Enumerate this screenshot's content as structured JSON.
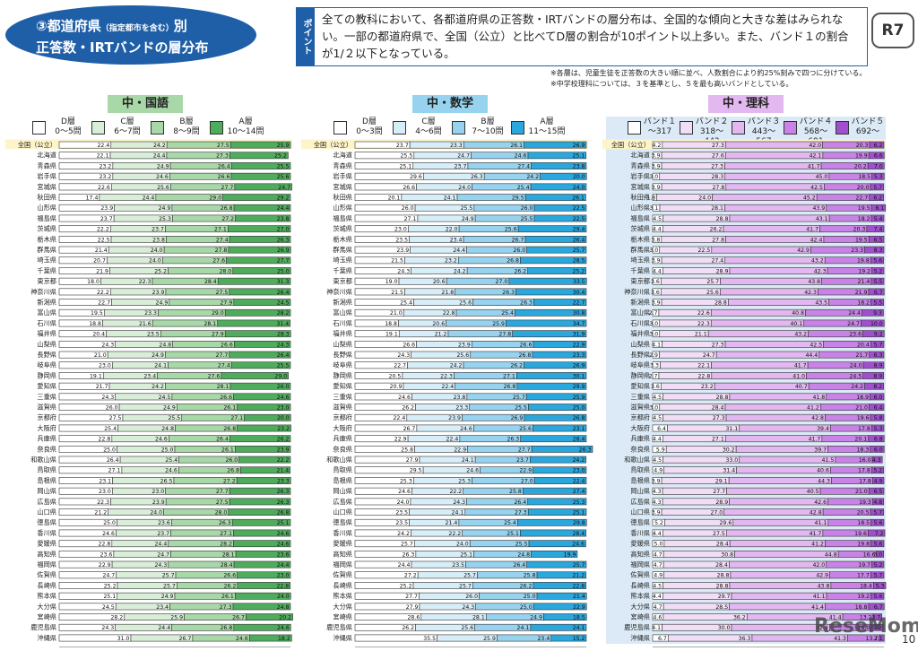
{
  "header": {
    "title_line1": "③都道府県",
    "title_note": "（指定都市を含む）",
    "title_suffix": "別",
    "title_line2": "正答数・IRTバンドの層分布",
    "point_label": "ポイント",
    "point_text": "全ての教科において、各都道府県の正答数・IRTバンドの層分布は、全国的な傾向と大きな差はみられない。一部の都道府県で、全国（公立）と比べてD層の割合が10ポイント以上多い。また、バンド１の割合が1/２以下となっている。",
    "badge": "R7",
    "note1": "※各層は、児童生徒を正答数の大きい順に並べ、人数割合により約25%刻みで四つに分けている。",
    "note2": "※中学校理科については、３を基準とし、５を最も高いバンドとしている。"
  },
  "footer": {
    "watermark": "ReseMom",
    "page": "10"
  },
  "chart_data": [
    {
      "type": "bar",
      "title": "中・国語",
      "legend": [
        {
          "name": "D層",
          "range": "0～5問",
          "color": "#ffffff"
        },
        {
          "name": "C層",
          "range": "6～7問",
          "color": "#d9eed9"
        },
        {
          "name": "B層",
          "range": "8～9問",
          "color": "#a8d8a8"
        },
        {
          "name": "A層",
          "range": "10～14問",
          "color": "#4fac5c"
        }
      ],
      "xticks": [
        "0%",
        "10%",
        "20%",
        "30%",
        "40%",
        "50%",
        "60%",
        "70%",
        "80%",
        "90%",
        "100%"
      ],
      "categories": [
        "全国（公立）",
        "北海道",
        "青森県",
        "岩手県",
        "宮城県",
        "秋田県",
        "山形県",
        "福島県",
        "茨城県",
        "栃木県",
        "群馬県",
        "埼玉県",
        "千葉県",
        "東京都",
        "神奈川県",
        "新潟県",
        "富山県",
        "石川県",
        "福井県",
        "山梨県",
        "長野県",
        "岐阜県",
        "静岡県",
        "愛知県",
        "三重県",
        "滋賀県",
        "京都府",
        "大阪府",
        "兵庫県",
        "奈良県",
        "和歌山県",
        "鳥取県",
        "島根県",
        "岡山県",
        "広島県",
        "山口県",
        "徳島県",
        "香川県",
        "愛媛県",
        "高知県",
        "福岡県",
        "佐賀県",
        "長崎県",
        "熊本県",
        "大分県",
        "宮崎県",
        "鹿児島県",
        "沖縄県"
      ],
      "series": [
        {
          "name": "D層",
          "values": [
            22.4,
            22.1,
            23.2,
            23.2,
            22.6,
            17.4,
            23.9,
            23.7,
            22.2,
            22.5,
            21.4,
            20.7,
            21.9,
            18.0,
            22.2,
            22.7,
            19.5,
            18.8,
            20.4,
            24.3,
            21.0,
            23.0,
            19.1,
            21.7,
            24.3,
            26.0,
            27.5,
            25.4,
            22.8,
            25.0,
            26.4,
            27.1,
            23.1,
            23.0,
            22.3,
            21.2,
            25.0,
            24.6,
            22.8,
            23.6,
            22.9,
            24.7,
            25.2,
            25.1,
            24.5,
            28.2,
            24.3,
            31.0
          ]
        },
        {
          "name": "C層",
          "values": [
            24.2,
            24.4,
            24.9,
            24.6,
            25.6,
            24.4,
            24.9,
            25.3,
            23.7,
            23.8,
            24.0,
            24.0,
            25.2,
            22.3,
            23.9,
            24.9,
            23.3,
            21.6,
            23.5,
            24.8,
            24.9,
            24.1,
            23.4,
            24.2,
            24.5,
            24.9,
            25.5,
            24.8,
            24.6,
            25.0,
            25.4,
            24.6,
            26.5,
            23.0,
            23.9,
            24.0,
            23.6,
            23.7,
            24.4,
            24.7,
            24.3,
            25.7,
            25.7,
            24.9,
            23.4,
            25.9,
            24.4,
            26.7
          ]
        },
        {
          "name": "B層",
          "values": [
            27.5,
            27.3,
            26.4,
            26.6,
            27.7,
            29.0,
            26.8,
            27.2,
            27.1,
            27.4,
            27.8,
            27.6,
            28.0,
            28.4,
            27.5,
            27.9,
            29.0,
            28.1,
            27.9,
            26.6,
            27.7,
            27.4,
            27.6,
            28.1,
            26.6,
            26.1,
            27.1,
            26.8,
            26.4,
            26.1,
            26.0,
            26.8,
            27.2,
            27.7,
            27.5,
            28.0,
            26.3,
            27.1,
            28.2,
            28.1,
            28.4,
            26.6,
            26.2,
            26.1,
            27.3,
            26.7,
            26.8,
            24.6
          ]
        },
        {
          "name": "A層",
          "values": [
            25.9,
            25.2,
            25.5,
            25.6,
            24.7,
            29.2,
            24.4,
            23.8,
            27.0,
            26.3,
            26.9,
            27.7,
            25.0,
            31.3,
            26.4,
            24.5,
            28.2,
            31.4,
            28.3,
            24.3,
            26.4,
            25.5,
            29.0,
            26.0,
            24.6,
            23.0,
            20.0,
            23.2,
            26.2,
            23.9,
            22.2,
            21.4,
            23.3,
            26.3,
            26.3,
            26.8,
            25.1,
            24.6,
            24.6,
            23.6,
            24.4,
            23.0,
            22.8,
            24.0,
            24.8,
            20.2,
            24.6,
            18.2
          ]
        }
      ]
    },
    {
      "type": "bar",
      "title": "中・数学",
      "legend": [
        {
          "name": "D層",
          "range": "0～3問",
          "color": "#ffffff"
        },
        {
          "name": "C層",
          "range": "4～6問",
          "color": "#d7eef9"
        },
        {
          "name": "B層",
          "range": "7～10問",
          "color": "#97d3ef"
        },
        {
          "name": "A層",
          "range": "11～15問",
          "color": "#2aa7dc"
        }
      ],
      "xticks": [
        "0%",
        "10%",
        "20%",
        "30%",
        "40%",
        "50%",
        "60%",
        "70%",
        "80%",
        "90%",
        "100%"
      ],
      "categories": [
        "全国（公立）",
        "北海道",
        "青森県",
        "岩手県",
        "宮城県",
        "秋田県",
        "山形県",
        "福島県",
        "茨城県",
        "栃木県",
        "群馬県",
        "埼玉県",
        "千葉県",
        "東京都",
        "神奈川県",
        "新潟県",
        "富山県",
        "石川県",
        "福井県",
        "山梨県",
        "長野県",
        "岐阜県",
        "静岡県",
        "愛知県",
        "三重県",
        "滋賀県",
        "京都府",
        "大阪府",
        "兵庫県",
        "奈良県",
        "和歌山県",
        "鳥取県",
        "島根県",
        "岡山県",
        "広島県",
        "山口県",
        "徳島県",
        "香川県",
        "愛媛県",
        "高知県",
        "福岡県",
        "佐賀県",
        "長崎県",
        "熊本県",
        "大分県",
        "宮崎県",
        "鹿児島県",
        "沖縄県"
      ],
      "series": [
        {
          "name": "D層",
          "values": [
            23.7,
            25.5,
            25.1,
            29.6,
            26.6,
            20.1,
            26.0,
            27.1,
            23.0,
            23.5,
            23.9,
            21.5,
            24.3,
            19.0,
            21.5,
            25.4,
            21.0,
            18.8,
            19.1,
            26.6,
            24.3,
            22.7,
            20.5,
            20.9,
            24.6,
            26.2,
            22.4,
            26.7,
            22.9,
            25.8,
            27.9,
            29.5,
            25.3,
            24.6,
            24.0,
            23.5,
            23.5,
            24.2,
            25.7,
            26.3,
            24.4,
            27.2,
            25.2,
            27.7,
            27.9,
            28.6,
            26.2,
            35.5
          ]
        },
        {
          "name": "C層",
          "values": [
            23.3,
            24.7,
            23.7,
            26.3,
            24.0,
            24.1,
            25.5,
            24.9,
            22.0,
            23.4,
            24.4,
            23.2,
            24.2,
            20.6,
            21.8,
            25.6,
            22.8,
            20.6,
            21.2,
            23.9,
            25.6,
            24.2,
            22.3,
            22.4,
            23.8,
            23.3,
            23.9,
            24.6,
            22.4,
            22.9,
            24.1,
            24.6,
            25.3,
            22.2,
            24.3,
            24.1,
            21.4,
            22.2,
            24.0,
            25.1,
            23.5,
            25.7,
            25.7,
            26.0,
            24.3,
            28.1,
            25.6,
            25.9
          ]
        },
        {
          "name": "B層",
          "values": [
            26.1,
            24.6,
            27.4,
            24.2,
            25.4,
            29.5,
            26.0,
            25.5,
            25.6,
            26.7,
            26.0,
            26.8,
            26.2,
            27.0,
            26.3,
            26.3,
            25.4,
            25.9,
            27.8,
            26.6,
            26.8,
            26.2,
            27.1,
            26.8,
            25.7,
            25.5,
            26.9,
            25.6,
            26.3,
            27.7,
            23.7,
            22.9,
            27.0,
            25.8,
            26.4,
            27.3,
            25.4,
            25.1,
            25.5,
            24.8,
            26.4,
            25.8,
            26.2,
            25.0,
            25.0,
            24.9,
            24.1,
            23.4
          ]
        },
        {
          "name": "A層",
          "values": [
            26.9,
            25.1,
            23.8,
            20.0,
            24.0,
            26.1,
            22.5,
            22.5,
            29.4,
            26.4,
            25.7,
            28.5,
            25.2,
            33.5,
            30.4,
            22.7,
            30.8,
            34.7,
            31.9,
            22.9,
            23.3,
            26.9,
            30.1,
            29.9,
            25.9,
            25.0,
            26.8,
            23.1,
            28.4,
            26.3,
            24.2,
            23.0,
            22.4,
            27.4,
            25.3,
            25.1,
            29.8,
            28.4,
            24.6,
            19.9,
            25.7,
            21.2,
            22.8,
            21.4,
            22.9,
            18.5,
            24.1,
            15.2
          ]
        }
      ]
    },
    {
      "type": "bar",
      "title": "中・理科",
      "legend": [
        {
          "name": "バンド１",
          "range": "～317",
          "color": "#ffffff"
        },
        {
          "name": "バンド２",
          "range": "318～442",
          "color": "#f2ddf7"
        },
        {
          "name": "バンド３",
          "range": "443～567",
          "color": "#e3b7f0"
        },
        {
          "name": "バンド４",
          "range": "568～691",
          "color": "#c983e6"
        },
        {
          "name": "バンド５",
          "range": "692～",
          "color": "#a24fcf"
        }
      ],
      "xticks": [
        "0%",
        "10%",
        "20%",
        "30%",
        "40%",
        "50%",
        "60%",
        "70%",
        "80%",
        "90%",
        "100%"
      ],
      "categories": [
        "全国（公立）",
        "北海道",
        "青森県",
        "岩手県",
        "宮城県",
        "秋田県",
        "山形県",
        "福島県",
        "茨城県",
        "栃木県",
        "群馬県",
        "埼玉県",
        "千葉県",
        "東京都",
        "神奈川県",
        "新潟県",
        "富山県",
        "石川県",
        "福井県",
        "山梨県",
        "長野県",
        "岐阜県",
        "静岡県",
        "愛知県",
        "三重県",
        "滋賀県",
        "京都府",
        "大阪府",
        "兵庫県",
        "奈良県",
        "和歌山県",
        "鳥取県",
        "島根県",
        "岡山県",
        "広島県",
        "山口県",
        "徳島県",
        "香川県",
        "愛媛県",
        "高知県",
        "福岡県",
        "佐賀県",
        "長崎県",
        "熊本県",
        "大分県",
        "宮崎県",
        "鹿児島県",
        "沖縄県"
      ],
      "series": [
        {
          "name": "バンド１",
          "values": [
            4.2,
            3.9,
            3.9,
            3.0,
            3.9,
            1.8,
            3.1,
            4.5,
            4.4,
            3.8,
            3.0,
            3.9,
            4.4,
            3.6,
            3.6,
            3.9,
            2.7,
            3.0,
            3.0,
            4.1,
            2.9,
            3.3,
            2.7,
            3.6,
            4.5,
            3.0,
            4.5,
            6.4,
            4.4,
            5.9,
            4.5,
            4.9,
            3.9,
            4.3,
            4.3,
            3.9,
            5.2,
            4.4,
            5.0,
            4.7,
            4.7,
            4.9,
            4.5,
            4.4,
            4.7,
            4.6,
            4.1,
            6.7
          ]
        },
        {
          "name": "バンド２",
          "values": [
            27.3,
            27.6,
            27.3,
            28.3,
            27.8,
            24.0,
            28.1,
            28.8,
            26.2,
            27.8,
            22.5,
            27.4,
            28.9,
            25.7,
            25.6,
            28.8,
            22.6,
            22.3,
            21.1,
            27.3,
            24.7,
            22.1,
            22.8,
            23.2,
            28.8,
            28.4,
            27.3,
            31.1,
            27.1,
            30.2,
            33.0,
            31.4,
            29.1,
            27.7,
            28.9,
            27.0,
            29.6,
            27.5,
            28.4,
            30.8,
            28.4,
            28.8,
            28.8,
            29.7,
            28.5,
            36.2,
            30.0,
            36.3
          ]
        },
        {
          "name": "バンド３",
          "values": [
            42.0,
            42.1,
            41.7,
            45.0,
            42.5,
            45.2,
            43.9,
            43.1,
            41.7,
            42.4,
            42.9,
            43.2,
            42.3,
            43.8,
            42.3,
            43.5,
            40.8,
            40.1,
            43.2,
            42.5,
            44.4,
            41.7,
            41.0,
            40.7,
            41.8,
            41.2,
            42.8,
            39.4,
            41.7,
            39.7,
            41.5,
            40.6,
            44.3,
            40.5,
            42.6,
            42.8,
            41.1,
            41.7,
            41.2,
            44.8,
            42.0,
            42.9,
            43.8,
            41.1,
            41.4,
            41.4,
            42.4,
            41.3
          ]
        },
        {
          "name": "バンド４",
          "values": [
            20.3,
            19.9,
            20.2,
            18.5,
            20.0,
            22.7,
            19.5,
            18.2,
            20.3,
            19.5,
            23.3,
            19.8,
            19.2,
            21.4,
            21.9,
            18.2,
            24.4,
            24.7,
            23.6,
            20.4,
            21.7,
            24.0,
            24.5,
            24.2,
            18.9,
            21.0,
            19.6,
            17.8,
            20.1,
            18.3,
            16.0,
            17.8,
            17.8,
            21.0,
            19.3,
            20.5,
            18.5,
            19.6,
            19.8,
            16.6,
            19.7,
            17.7,
            18.4,
            19.2,
            18.8,
            13.2,
            18.0,
            13.7
          ]
        },
        {
          "name": "バンド５",
          "values": [
            6.2,
            6.6,
            7.0,
            5.3,
            5.7,
            6.2,
            6.1,
            5.4,
            7.4,
            6.5,
            8.3,
            5.6,
            5.2,
            5.5,
            6.7,
            5.5,
            9.3,
            10.0,
            9.2,
            5.7,
            6.3,
            8.9,
            8.9,
            8.2,
            6.0,
            6.4,
            5.8,
            5.3,
            6.8,
            6.0,
            4.3,
            5.2,
            4.9,
            6.5,
            4.8,
            5.7,
            5.6,
            7.2,
            5.6,
            3.0,
            5.2,
            5.7,
            5.3,
            5.6,
            6.7,
            3.7,
            5.2,
            2.1
          ]
        }
      ]
    }
  ]
}
